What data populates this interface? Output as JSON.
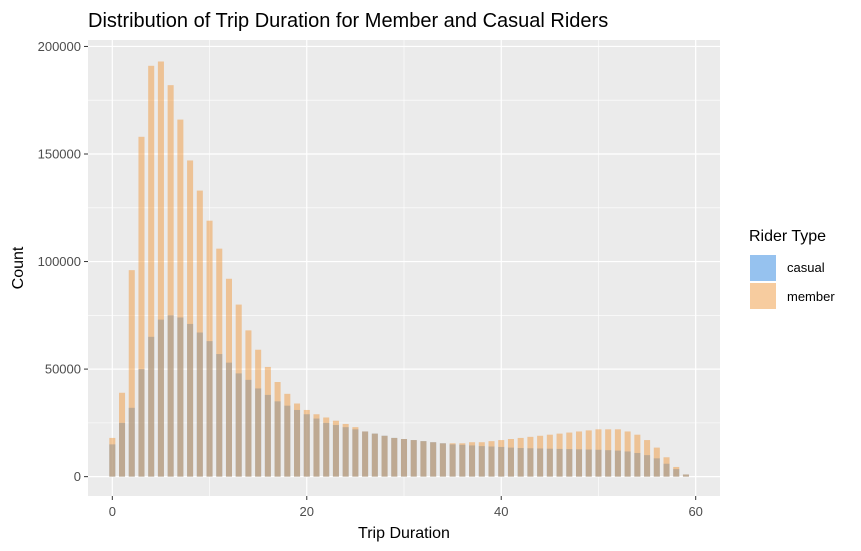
{
  "chart_data": {
    "type": "bar",
    "title": "Distribution of Trip Duration for Member and Casual Riders",
    "xlabel": "Trip Duration",
    "ylabel": "Count",
    "xlim": [
      -2.5,
      62.5
    ],
    "ylim": [
      -9000,
      203000
    ],
    "xticks": [
      0,
      20,
      40,
      60
    ],
    "xtick_labels": [
      "0",
      "20",
      "40",
      "60"
    ],
    "yticks": [
      0,
      50000,
      100000,
      150000,
      200000
    ],
    "ytick_labels": [
      "0",
      "50000",
      "100000",
      "150000",
      "200000"
    ],
    "grid": true,
    "stacked": false,
    "bar_alpha": 0.5,
    "legend": {
      "title": "Rider Type",
      "position": "right"
    },
    "x": [
      0,
      1,
      2,
      3,
      4,
      5,
      6,
      7,
      8,
      9,
      10,
      11,
      12,
      13,
      14,
      15,
      16,
      17,
      18,
      19,
      20,
      21,
      22,
      23,
      24,
      25,
      26,
      27,
      28,
      29,
      30,
      31,
      32,
      33,
      34,
      35,
      36,
      37,
      38,
      39,
      40,
      41,
      42,
      43,
      44,
      45,
      46,
      47,
      48,
      49,
      50,
      51,
      52,
      53,
      54,
      55,
      56,
      57,
      58,
      59
    ],
    "series": [
      {
        "name": "casual",
        "color": "#2d86e0",
        "values": [
          15000,
          25000,
          32000,
          50000,
          65000,
          73000,
          75000,
          74000,
          71000,
          67000,
          63000,
          57000,
          53000,
          48000,
          45000,
          41000,
          38000,
          35000,
          33000,
          31000,
          29000,
          27000,
          25000,
          24000,
          23000,
          22000,
          21000,
          20000,
          19000,
          18000,
          17500,
          17000,
          16500,
          16000,
          15500,
          15000,
          14800,
          14500,
          14200,
          14000,
          13800,
          13500,
          13300,
          13200,
          13100,
          13000,
          12900,
          12800,
          12700,
          12600,
          12500,
          12300,
          12100,
          11700,
          11000,
          10000,
          8500,
          6000,
          3500,
          1000
        ]
      },
      {
        "name": "member",
        "color": "#f09a40",
        "values": [
          18000,
          39000,
          96000,
          158000,
          191000,
          193000,
          182000,
          166000,
          147000,
          133000,
          119000,
          106000,
          92000,
          80000,
          68000,
          59000,
          51000,
          44000,
          38500,
          34000,
          31000,
          29000,
          27500,
          26000,
          24500,
          23000,
          21000,
          20000,
          19000,
          18000,
          17500,
          17000,
          16500,
          16000,
          15500,
          15500,
          15500,
          16000,
          16000,
          16500,
          17000,
          17500,
          18000,
          18500,
          19000,
          19500,
          20000,
          20500,
          21000,
          21500,
          22000,
          22000,
          22000,
          21000,
          19500,
          17000,
          13500,
          9000,
          4500,
          1000
        ]
      }
    ]
  }
}
